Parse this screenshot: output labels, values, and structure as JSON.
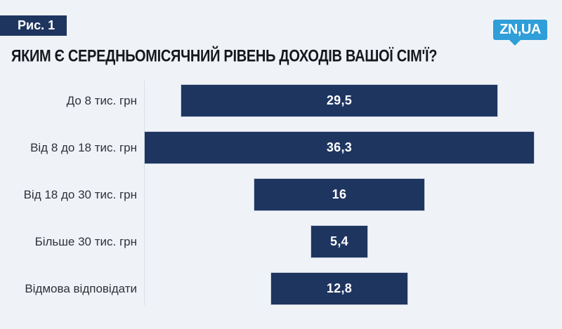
{
  "figure_label": "Рис. 1",
  "logo": {
    "text": "ZN,UA",
    "color": "#2f9ed9"
  },
  "title": "ЯКИМ Є СЕРЕДНЬОМІСЯЧНИЙ РІВЕНЬ ДОХОДІВ ВАШОЇ СІМ'Ї?",
  "colors": {
    "background": "#eff3f8",
    "bar": "#1e3560",
    "badge": "#1e3560",
    "title_text": "#16181d",
    "category_text": "#2e3238",
    "value_text": "#ffffff",
    "axis_line": "#d9dee6"
  },
  "chart_data": {
    "type": "bar",
    "orientation": "horizontal",
    "style": "centered-funnel",
    "title": "ЯКИМ Є СЕРЕДНЬОМІСЯЧНИЙ РІВЕНЬ ДОХОДІВ ВАШОЇ СІМ'Ї?",
    "categories": [
      "До 8 тис. грн",
      "Від 8 до 18 тис. грн",
      "Від 18 до 30 тис. грн",
      "Більше 30 тис. грн",
      "Відмова відповідати"
    ],
    "values": [
      29.5,
      36.3,
      16,
      5.4,
      12.8
    ],
    "value_labels": [
      "29,5",
      "36,3",
      "16",
      "5,4",
      "12,8"
    ],
    "xlabel": "",
    "ylabel": "",
    "grid": false,
    "legend": false
  }
}
